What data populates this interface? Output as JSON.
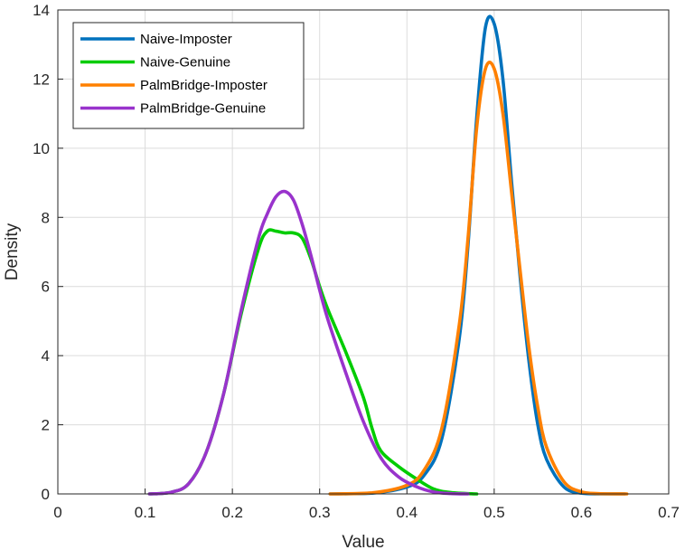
{
  "chart_data": {
    "type": "line",
    "title": "",
    "xlabel": "Value",
    "ylabel": "Density",
    "xlim": [
      0,
      0.7
    ],
    "ylim": [
      0,
      14
    ],
    "xticks": [
      0,
      0.1,
      0.2,
      0.3,
      0.4,
      0.5,
      0.6,
      0.7
    ],
    "xtick_labels": [
      "0",
      "0.1",
      "0.2",
      "0.3",
      "0.4",
      "0.5",
      "0.6",
      "0.7"
    ],
    "yticks": [
      0,
      2,
      4,
      6,
      8,
      10,
      12,
      14
    ],
    "ytick_labels": [
      "0",
      "2",
      "4",
      "6",
      "8",
      "10",
      "12",
      "14"
    ],
    "grid": true,
    "legend_position": "top-left",
    "series": [
      {
        "name": "Naive-Imposter",
        "color": "#0072bd",
        "x": [
          0.312,
          0.36,
          0.4,
          0.42,
          0.44,
          0.46,
          0.47,
          0.48,
          0.49,
          0.5,
          0.51,
          0.52,
          0.53,
          0.54,
          0.55,
          0.56,
          0.58,
          0.6,
          0.62,
          0.65
        ],
        "y": [
          0,
          0.02,
          0.2,
          0.55,
          1.6,
          4.5,
          7.2,
          10.9,
          13.5,
          13.6,
          12.0,
          9.0,
          6.2,
          3.8,
          2.0,
          1.0,
          0.2,
          0.02,
          0,
          0
        ]
      },
      {
        "name": "Naive-Genuine",
        "color": "#00cc00",
        "x": [
          0.105,
          0.13,
          0.15,
          0.17,
          0.19,
          0.21,
          0.23,
          0.24,
          0.25,
          0.26,
          0.27,
          0.28,
          0.29,
          0.3,
          0.31,
          0.33,
          0.35,
          0.36,
          0.37,
          0.39,
          0.41,
          0.43,
          0.45,
          0.48
        ],
        "y": [
          0,
          0.05,
          0.3,
          1.2,
          2.9,
          5.2,
          7.1,
          7.6,
          7.6,
          7.55,
          7.55,
          7.4,
          6.8,
          6.0,
          5.3,
          4.1,
          2.8,
          1.9,
          1.25,
          0.8,
          0.45,
          0.15,
          0.04,
          0
        ]
      },
      {
        "name": "PalmBridge-Imposter",
        "color": "#ff8000",
        "x": [
          0.312,
          0.36,
          0.4,
          0.42,
          0.44,
          0.46,
          0.47,
          0.48,
          0.49,
          0.5,
          0.51,
          0.52,
          0.53,
          0.54,
          0.55,
          0.56,
          0.58,
          0.6,
          0.62,
          0.652
        ],
        "y": [
          0,
          0.03,
          0.25,
          0.7,
          1.9,
          4.9,
          7.4,
          10.6,
          12.3,
          12.3,
          11.0,
          8.7,
          6.4,
          4.2,
          2.5,
          1.35,
          0.35,
          0.06,
          0.01,
          0
        ]
      },
      {
        "name": "PalmBridge-Genuine",
        "color": "#9933cc",
        "x": [
          0.105,
          0.13,
          0.15,
          0.17,
          0.19,
          0.21,
          0.23,
          0.24,
          0.25,
          0.26,
          0.27,
          0.28,
          0.29,
          0.3,
          0.31,
          0.33,
          0.35,
          0.37,
          0.39,
          0.41,
          0.43,
          0.45,
          0.47
        ],
        "y": [
          0,
          0.05,
          0.3,
          1.2,
          2.9,
          5.3,
          7.4,
          8.1,
          8.6,
          8.75,
          8.5,
          7.8,
          6.9,
          5.9,
          5.0,
          3.5,
          2.1,
          1.05,
          0.5,
          0.22,
          0.06,
          0.01,
          0
        ]
      }
    ]
  }
}
